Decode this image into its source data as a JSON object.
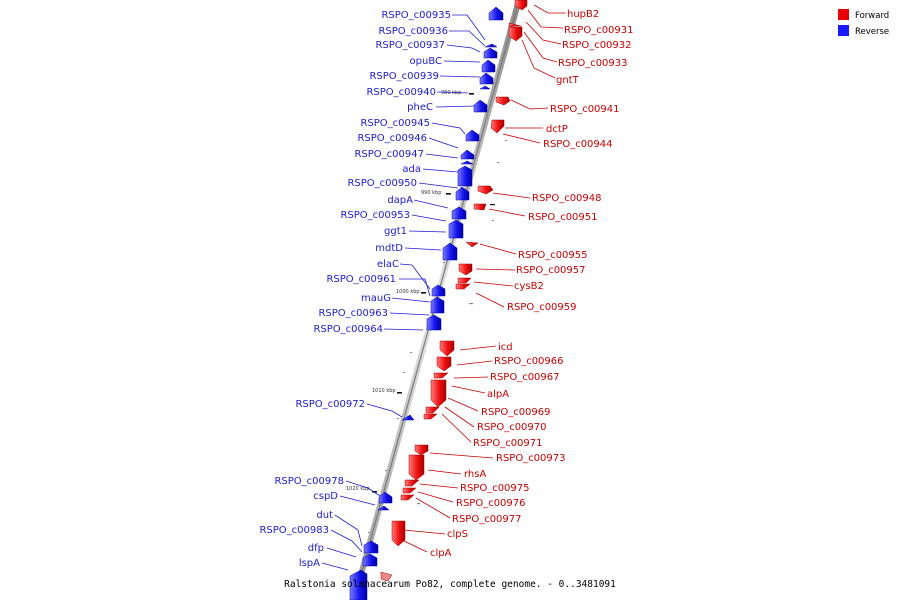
{
  "caption": "Ralstonia solanacearum Po82, complete genome. - 0..3481091",
  "legend": [
    {
      "label": "Forward",
      "color": "#e60000"
    },
    {
      "label": "Reverse",
      "color": "#1a1aff"
    }
  ],
  "scale_labels": [
    "980 kbp",
    "990 kbp",
    "1000 kbp",
    "1010 kbp",
    "1020 kbp"
  ],
  "reverse_genes": [
    "RSPO_c00935",
    "RSPO_c00936",
    "RSPO_c00937",
    "opuBC",
    "RSPO_c00939",
    "RSPO_c00940",
    "pheC",
    "RSPO_c00945",
    "RSPO_c00946",
    "RSPO_c00947",
    "ada",
    "RSPO_c00950",
    "dapA",
    "RSPO_c00953",
    "ggt1",
    "mdtD",
    "elaC",
    "RSPO_c00961",
    "mauG",
    "RSPO_c00963",
    "RSPO_c00964",
    "RSPO_c00972",
    "RSPO_c00978",
    "cspD",
    "dut",
    "RSPO_c00983",
    "dfp",
    "lspA"
  ],
  "forward_genes": [
    "hupB2",
    "RSPO_c00931",
    "RSPO_c00932",
    "RSPO_c00933",
    "gntT",
    "RSPO_c00941",
    "dctP",
    "RSPO_c00944",
    "RSPO_c00948",
    "RSPO_c00951",
    "RSPO_c00955",
    "RSPO_c00957",
    "cysB2",
    "RSPO_c00959",
    "icd",
    "RSPO_c00966",
    "RSPO_c00967",
    "alpA",
    "RSPO_c00969",
    "RSPO_c00970",
    "RSPO_c00971",
    "RSPO_c00973",
    "rhsA",
    "RSPO_c00975",
    "RSPO_c00976",
    "RSPO_c00977",
    "clpS",
    "clpA"
  ]
}
